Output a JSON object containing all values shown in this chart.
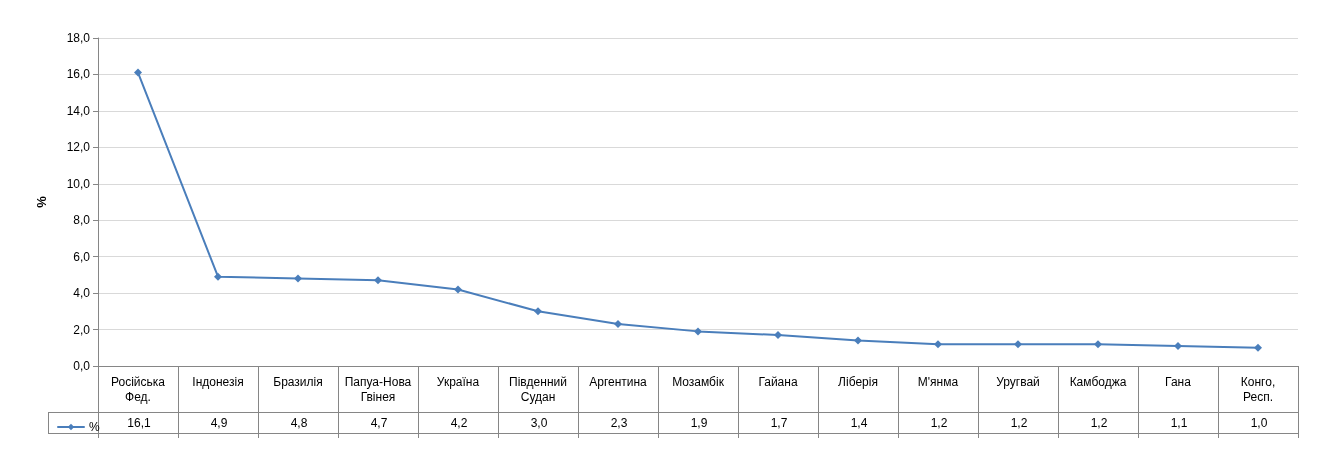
{
  "chart_data": {
    "type": "line",
    "ylabel": "%",
    "categories": [
      "Російська Фед.",
      "Індонезія",
      "Бразилія",
      "Папуа-Нова Гвінея",
      "Україна",
      "Південний Судан",
      "Аргентина",
      "Мозамбік",
      "Гайана",
      "Ліберія",
      "М'янма",
      "Уругвай",
      "Камбоджа",
      "Гана",
      "Конго, Респ."
    ],
    "series": [
      {
        "name": "%",
        "color": "#4a7ebb",
        "values": [
          16.1,
          4.9,
          4.8,
          4.7,
          4.2,
          3.0,
          2.3,
          1.9,
          1.7,
          1.4,
          1.2,
          1.2,
          1.2,
          1.1,
          1.0
        ],
        "value_labels": [
          "16,1",
          "4,9",
          "4,8",
          "4,7",
          "4,2",
          "3,0",
          "2,3",
          "1,9",
          "1,7",
          "1,4",
          "1,2",
          "1,2",
          "1,2",
          "1,1",
          "1,0"
        ]
      }
    ],
    "ylim": [
      0,
      18
    ],
    "yticks": [
      {
        "value": 0,
        "label": "0,0"
      },
      {
        "value": 2,
        "label": "2,0"
      },
      {
        "value": 4,
        "label": "4,0"
      },
      {
        "value": 6,
        "label": "6,0"
      },
      {
        "value": 8,
        "label": "8,0"
      },
      {
        "value": 10,
        "label": "10,0"
      },
      {
        "value": 12,
        "label": "12,0"
      },
      {
        "value": 14,
        "label": "14,0"
      },
      {
        "value": 16,
        "label": "16,0"
      },
      {
        "value": 18,
        "label": "18,0"
      }
    ],
    "grid": "y",
    "legend": "bottom left",
    "marker": "diamond",
    "line_style": "solid"
  }
}
